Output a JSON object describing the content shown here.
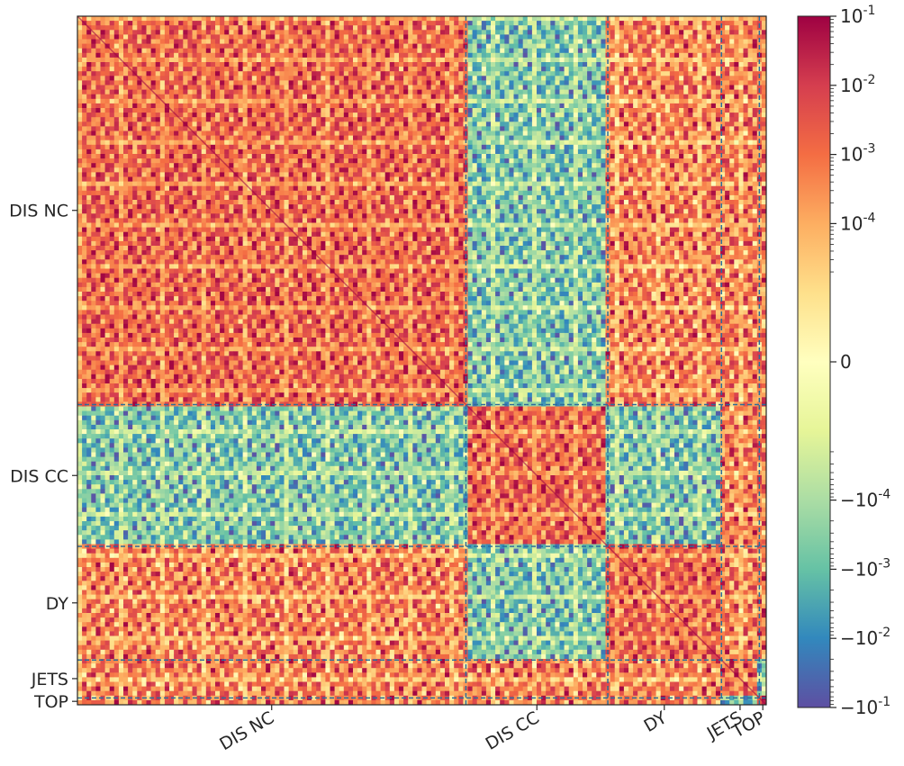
{
  "chart_data": {
    "type": "heatmap",
    "title": "",
    "xlabel": "",
    "ylabel": "",
    "blocks": [
      {
        "label": "DIS NC",
        "start": 0.0,
        "end": 0.564
      },
      {
        "label": "DIS CC",
        "start": 0.564,
        "end": 0.77
      },
      {
        "label": "DY",
        "start": 0.77,
        "end": 0.935
      },
      {
        "label": "JETS",
        "start": 0.935,
        "end": 0.99
      },
      {
        "label": "TOP",
        "start": 0.99,
        "end": 1.0
      }
    ],
    "x_tick_labels": [
      "DIS NC",
      "DIS CC",
      "DY",
      "JETS",
      "TOP"
    ],
    "x_tick_positions": [
      0.282,
      0.667,
      0.852,
      0.962,
      0.995
    ],
    "y_tick_labels": [
      "DIS NC",
      "DIS CC",
      "DY",
      "JETS",
      "TOP"
    ],
    "y_tick_positions": [
      0.282,
      0.667,
      0.852,
      0.962,
      0.995
    ],
    "colorbar": {
      "scale": "symlog",
      "linthresh": 1e-05,
      "vmin": -0.1,
      "vmax": 0.1,
      "ticks": [
        {
          "value": 0.1,
          "label": "10^-1"
        },
        {
          "value": 0.01,
          "label": "10^-2"
        },
        {
          "value": 0.001,
          "label": "10^-3"
        },
        {
          "value": 0.0001,
          "label": "10^-4"
        },
        {
          "value": 0,
          "label": "0"
        },
        {
          "value": -0.0001,
          "label": "−10^-4"
        },
        {
          "value": -0.001,
          "label": "−10^-3"
        },
        {
          "value": -0.01,
          "label": "−10^-2"
        },
        {
          "value": -0.1,
          "label": "−10^-1"
        }
      ],
      "colormap": "Spectral_r",
      "colors": [
        "#5e4fa2",
        "#3288bd",
        "#66c2a5",
        "#abdda4",
        "#e6f598",
        "#ffffbf",
        "#fee08b",
        "#fdae61",
        "#f46d43",
        "#d53e4f",
        "#9e0142"
      ]
    },
    "block_signs": [
      [
        1,
        -1,
        1,
        1,
        1
      ],
      [
        -1,
        1,
        -1,
        1,
        1
      ],
      [
        1,
        -1,
        1,
        1,
        1
      ],
      [
        1,
        1,
        1,
        1,
        -1
      ],
      [
        1,
        1,
        1,
        -1,
        1
      ]
    ]
  }
}
